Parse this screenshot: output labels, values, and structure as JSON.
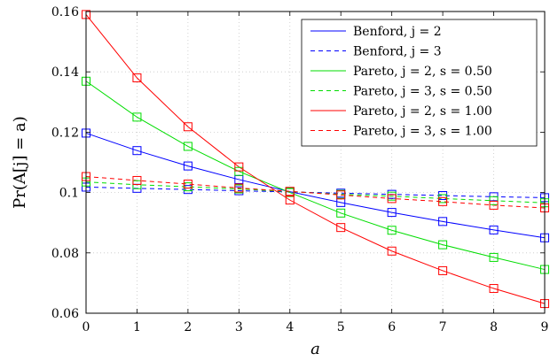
{
  "chart_data": {
    "type": "line",
    "xlabel": "a",
    "ylabel": "Pr(A[j] = a)",
    "xlim": [
      0,
      9
    ],
    "ylim": [
      0.06,
      0.16
    ],
    "x": [
      0,
      1,
      2,
      3,
      4,
      5,
      6,
      7,
      8,
      9
    ],
    "x_tick_labels": [
      "0",
      "1",
      "2",
      "3",
      "4",
      "5",
      "6",
      "7",
      "8",
      "9"
    ],
    "y_ticks": [
      0.06,
      0.08,
      0.1,
      0.12,
      0.14,
      0.16
    ],
    "y_tick_labels": [
      "0.06",
      "0.08",
      "0.1",
      "0.12",
      "0.14",
      "0.16"
    ],
    "grid": true,
    "legend_position": "top-right",
    "series": [
      {
        "name": "Benford, j = 2",
        "color": "#0000ff",
        "dash": false,
        "values": [
          0.1197,
          0.1139,
          0.1088,
          0.1043,
          0.1003,
          0.0967,
          0.0934,
          0.0904,
          0.0876,
          0.085
        ]
      },
      {
        "name": "Benford, j = 3",
        "color": "#0000ff",
        "dash": true,
        "values": [
          0.1018,
          0.1014,
          0.101,
          0.1006,
          0.1002,
          0.0998,
          0.0994,
          0.099,
          0.0986,
          0.0983
        ]
      },
      {
        "name": "Pareto, j = 2, s = 0.50",
        "color": "#00dd00",
        "dash": false,
        "values": [
          0.1369,
          0.125,
          0.1153,
          0.107,
          0.1,
          0.0932,
          0.0875,
          0.0827,
          0.0785,
          0.0745
        ]
      },
      {
        "name": "Pareto, j = 3, s = 0.50",
        "color": "#00dd00",
        "dash": true,
        "values": [
          0.1035,
          0.1026,
          0.1019,
          0.1012,
          0.1003,
          0.0994,
          0.0988,
          0.098,
          0.0973,
          0.0966
        ]
      },
      {
        "name": "Pareto, j = 2, s = 1.00",
        "color": "#ff0000",
        "dash": false,
        "values": [
          0.159,
          0.138,
          0.1218,
          0.1085,
          0.0975,
          0.0884,
          0.0806,
          0.0741,
          0.0682,
          0.0632
        ]
      },
      {
        "name": "Pareto, j = 3, s = 1.00",
        "color": "#ff0000",
        "dash": true,
        "values": [
          0.1053,
          0.104,
          0.1028,
          0.1015,
          0.1004,
          0.0992,
          0.098,
          0.097,
          0.0958,
          0.0949
        ]
      }
    ]
  }
}
